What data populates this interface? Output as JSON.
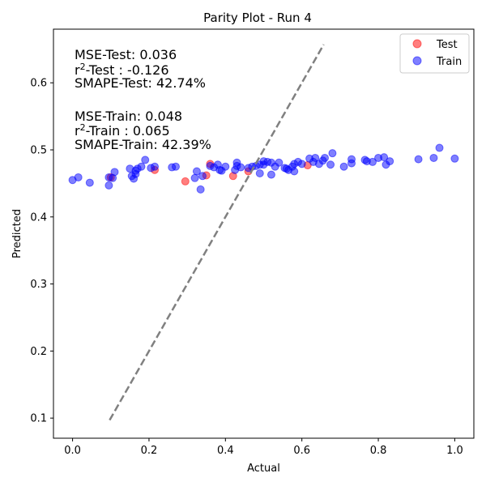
{
  "chart_data": {
    "type": "scatter",
    "title": "Parity Plot - Run 4",
    "xlabel": "Actual",
    "ylabel": "Predicted",
    "xlim": [
      -0.05,
      1.05
    ],
    "ylim": [
      0.07,
      0.68
    ],
    "xticks": [
      "0.0",
      "0.2",
      "0.4",
      "0.6",
      "0.8",
      "1.0"
    ],
    "yticks": [
      "0.1",
      "0.2",
      "0.3",
      "0.4",
      "0.5",
      "0.6"
    ],
    "grid": false,
    "legend_position": "top-right",
    "parity_line": {
      "x": [
        0.097,
        0.657
      ],
      "y": [
        0.097,
        0.657
      ],
      "color": "#808080",
      "style": "dashed"
    },
    "metrics": {
      "mse_test": "MSE-Test: 0.036",
      "r2_test_prefix": "r",
      "r2_test_sup": "2",
      "r2_test_suffix": "-Test : -0.126",
      "smape_test": "SMAPE-Test: 42.74%",
      "mse_train": "MSE-Train: 0.048",
      "r2_train_prefix": "r",
      "r2_train_sup": "2",
      "r2_train_suffix": "-Train : 0.065",
      "smape_train": "SMAPE-Train: 42.39%"
    },
    "series": [
      {
        "name": "Test",
        "color": "#ff0000",
        "alpha": 0.5,
        "points": [
          [
            0.1,
            0.459
          ],
          [
            0.215,
            0.47
          ],
          [
            0.295,
            0.453
          ],
          [
            0.35,
            0.462
          ],
          [
            0.42,
            0.461
          ],
          [
            0.46,
            0.468
          ],
          [
            0.615,
            0.477
          ],
          [
            0.36,
            0.479
          ]
        ]
      },
      {
        "name": "Train",
        "color": "#0000ff",
        "alpha": 0.5,
        "points": [
          [
            0.0,
            0.455
          ],
          [
            0.015,
            0.459
          ],
          [
            0.045,
            0.451
          ],
          [
            0.095,
            0.447
          ],
          [
            0.095,
            0.459
          ],
          [
            0.105,
            0.458
          ],
          [
            0.11,
            0.467
          ],
          [
            0.15,
            0.472
          ],
          [
            0.155,
            0.461
          ],
          [
            0.16,
            0.457
          ],
          [
            0.165,
            0.464
          ],
          [
            0.165,
            0.469
          ],
          [
            0.17,
            0.472
          ],
          [
            0.18,
            0.475
          ],
          [
            0.19,
            0.485
          ],
          [
            0.205,
            0.473
          ],
          [
            0.215,
            0.475
          ],
          [
            0.26,
            0.474
          ],
          [
            0.27,
            0.475
          ],
          [
            0.32,
            0.458
          ],
          [
            0.325,
            0.468
          ],
          [
            0.335,
            0.441
          ],
          [
            0.34,
            0.461
          ],
          [
            0.36,
            0.476
          ],
          [
            0.37,
            0.474
          ],
          [
            0.38,
            0.478
          ],
          [
            0.385,
            0.47
          ],
          [
            0.39,
            0.469
          ],
          [
            0.4,
            0.475
          ],
          [
            0.425,
            0.47
          ],
          [
            0.43,
            0.476
          ],
          [
            0.43,
            0.481
          ],
          [
            0.44,
            0.474
          ],
          [
            0.46,
            0.473
          ],
          [
            0.47,
            0.475
          ],
          [
            0.48,
            0.476
          ],
          [
            0.49,
            0.478
          ],
          [
            0.49,
            0.465
          ],
          [
            0.5,
            0.483
          ],
          [
            0.5,
            0.478
          ],
          [
            0.51,
            0.482
          ],
          [
            0.52,
            0.481
          ],
          [
            0.52,
            0.463
          ],
          [
            0.53,
            0.475
          ],
          [
            0.54,
            0.481
          ],
          [
            0.555,
            0.473
          ],
          [
            0.56,
            0.472
          ],
          [
            0.565,
            0.47
          ],
          [
            0.575,
            0.475
          ],
          [
            0.58,
            0.479
          ],
          [
            0.58,
            0.468
          ],
          [
            0.59,
            0.482
          ],
          [
            0.6,
            0.479
          ],
          [
            0.62,
            0.487
          ],
          [
            0.63,
            0.482
          ],
          [
            0.635,
            0.488
          ],
          [
            0.645,
            0.479
          ],
          [
            0.655,
            0.484
          ],
          [
            0.66,
            0.488
          ],
          [
            0.675,
            0.478
          ],
          [
            0.68,
            0.495
          ],
          [
            0.71,
            0.475
          ],
          [
            0.73,
            0.48
          ],
          [
            0.73,
            0.486
          ],
          [
            0.765,
            0.485
          ],
          [
            0.77,
            0.483
          ],
          [
            0.785,
            0.482
          ],
          [
            0.8,
            0.488
          ],
          [
            0.815,
            0.489
          ],
          [
            0.82,
            0.478
          ],
          [
            0.83,
            0.483
          ],
          [
            0.905,
            0.486
          ],
          [
            0.945,
            0.488
          ],
          [
            0.96,
            0.503
          ],
          [
            1.0,
            0.487
          ]
        ]
      }
    ]
  }
}
